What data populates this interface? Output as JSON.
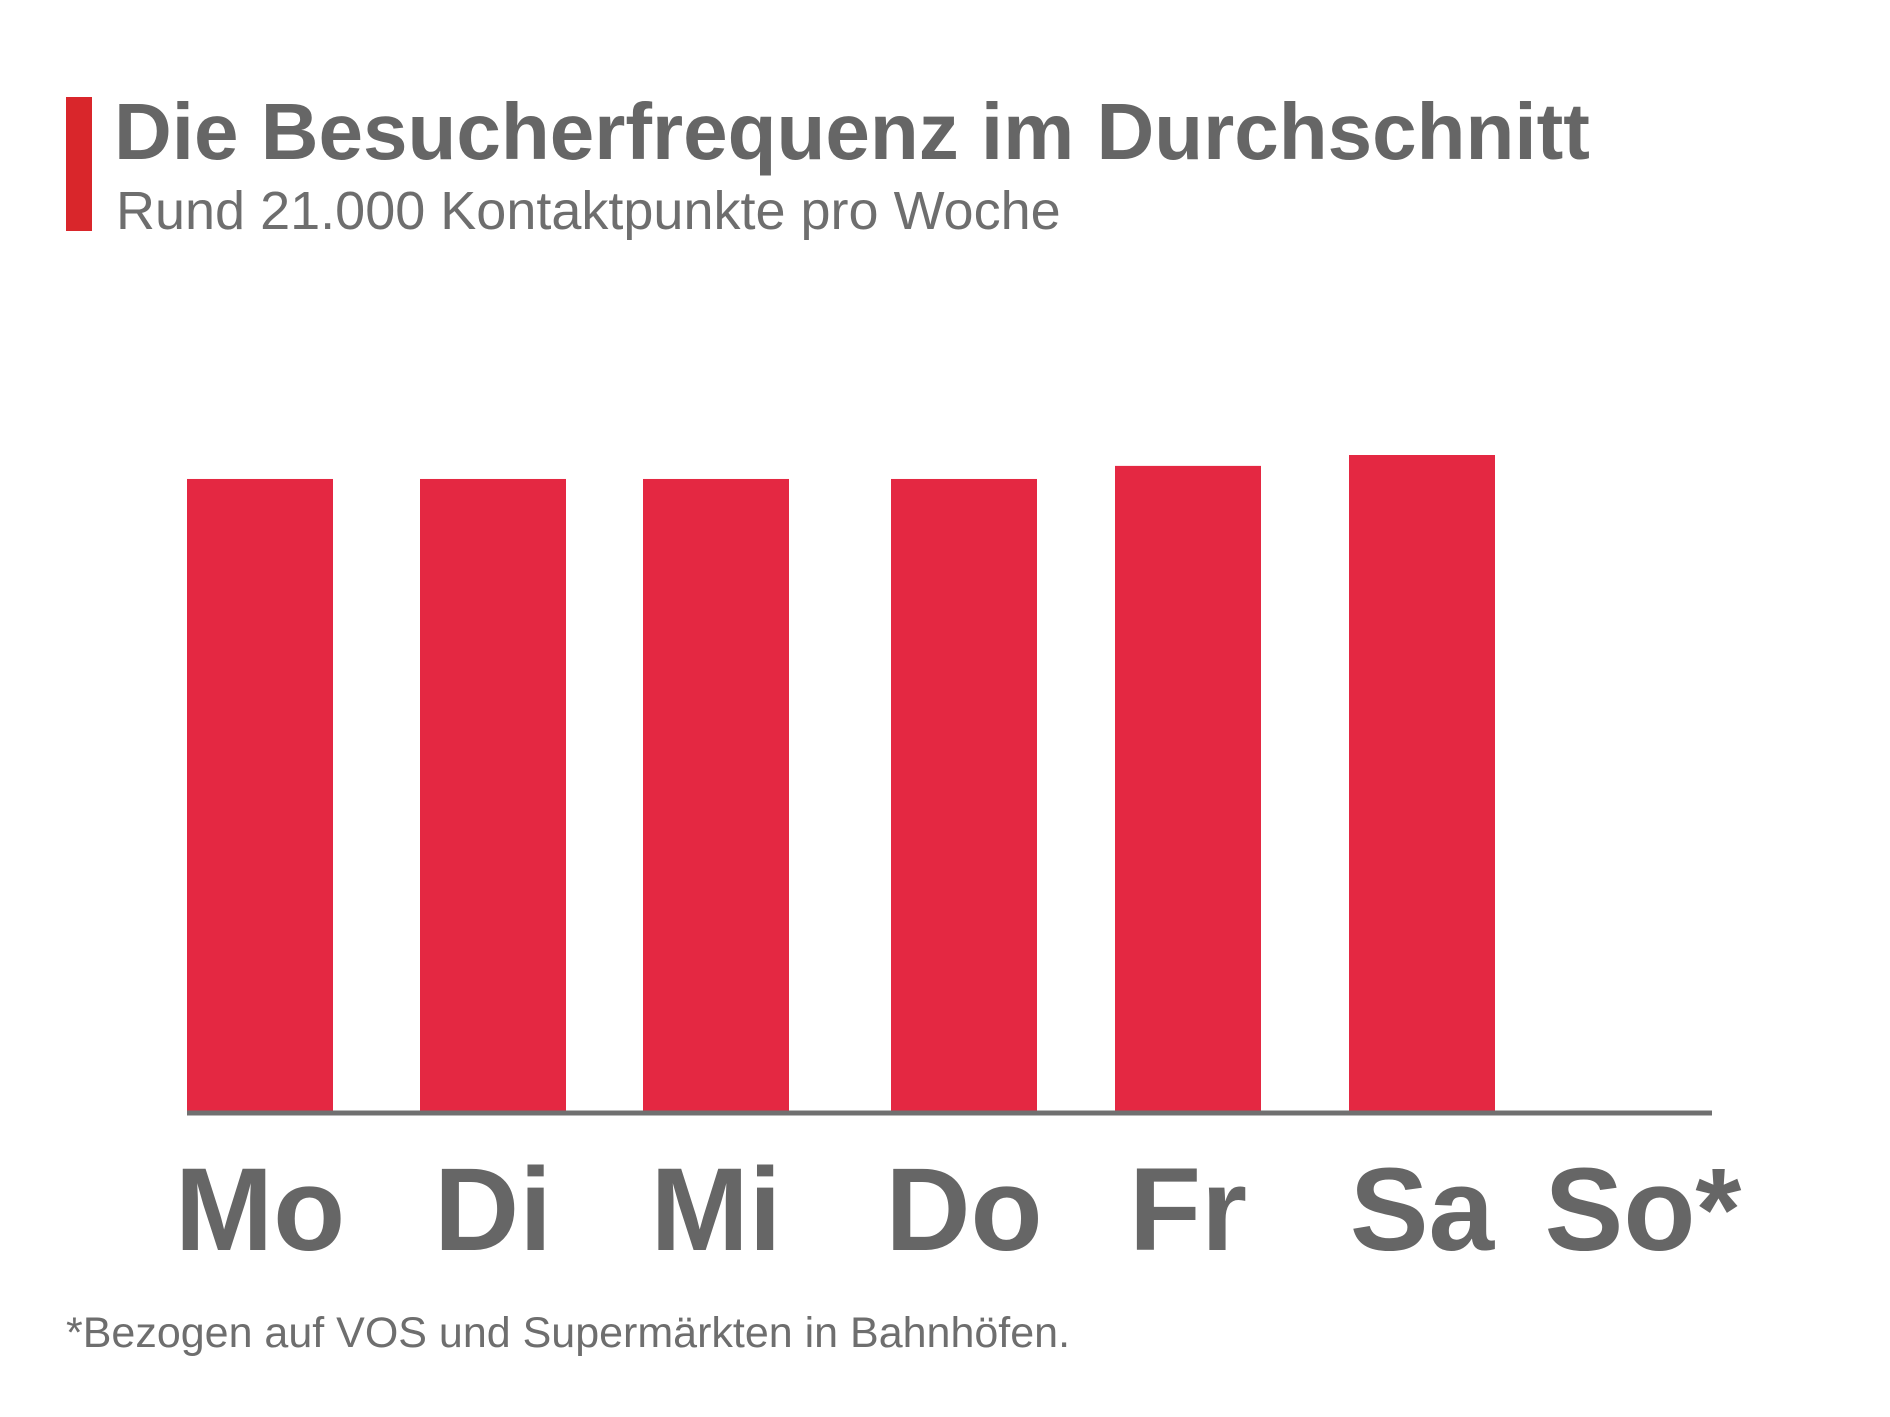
{
  "title": "Die Besucherfrequenz im Durchschnitt",
  "subtitle": "Rund 21.000 Kontaktpunkte pro Woche",
  "footnote": "*Bezogen auf VOS und Supermärkten in Bahnhöfen.",
  "colors": {
    "accent": "#d9262b",
    "bar": "#e42842",
    "text": "#666666",
    "axis": "#707070"
  },
  "chart_data": {
    "type": "bar",
    "title": "Die Besucherfrequenz im Durchschnitt",
    "subtitle": "Rund 21.000 Kontaktpunkte pro Woche",
    "xlabel": "",
    "ylabel": "",
    "categories": [
      "Mo",
      "Di",
      "Mi",
      "Do",
      "Fr",
      "Sa",
      "So*"
    ],
    "values": [
      2900,
      2900,
      2900,
      2900,
      2960,
      3010,
      0
    ],
    "ylim": [
      0,
      3010
    ],
    "grid": false,
    "legend": "none"
  }
}
